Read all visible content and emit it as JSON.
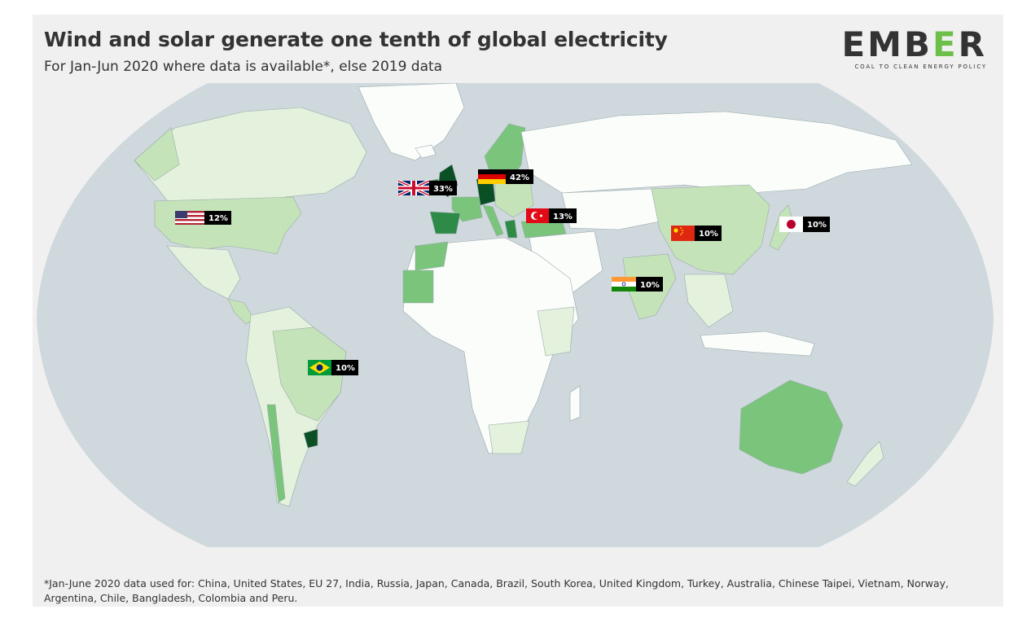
{
  "header": {
    "title": "Wind and solar generate one tenth of global electricity",
    "subtitle": "For Jan-Jun 2020 where data is available*, else 2019 data"
  },
  "logo": {
    "text": "EMBER",
    "tagline": "COAL TO CLEAN ENERGY POLICY",
    "accent_color": "#6cc04a"
  },
  "map": {
    "ocean_color": "#cfd8dc",
    "land_default_color": "#fbfdfb",
    "color_scale": [
      "#fbfdfb",
      "#e3f1dd",
      "#c5e3b9",
      "#7ac57b",
      "#2e8b47",
      "#0b4f24"
    ],
    "callouts": [
      {
        "country": "United States",
        "flag": "us-flag-icon",
        "value": "12%"
      },
      {
        "country": "United Kingdom",
        "flag": "uk-flag-icon",
        "value": "33%"
      },
      {
        "country": "Germany",
        "flag": "de-flag-icon",
        "value": "42%"
      },
      {
        "country": "Turkey",
        "flag": "tr-flag-icon",
        "value": "13%"
      },
      {
        "country": "China",
        "flag": "cn-flag-icon",
        "value": "10%"
      },
      {
        "country": "Japan",
        "flag": "jp-flag-icon",
        "value": "10%"
      },
      {
        "country": "India",
        "flag": "in-flag-icon",
        "value": "10%"
      },
      {
        "country": "Brazil",
        "flag": "br-flag-icon",
        "value": "10%"
      }
    ]
  },
  "footnote": "*Jan-June 2020 data used for: China, United States, EU 27, India, Russia, Japan, Canada, Brazil, South Korea, United Kingdom, Turkey, Australia, Chinese Taipei, Vietnam, Norway, Argentina, Chile, Bangladesh, Colombia and Peru."
}
